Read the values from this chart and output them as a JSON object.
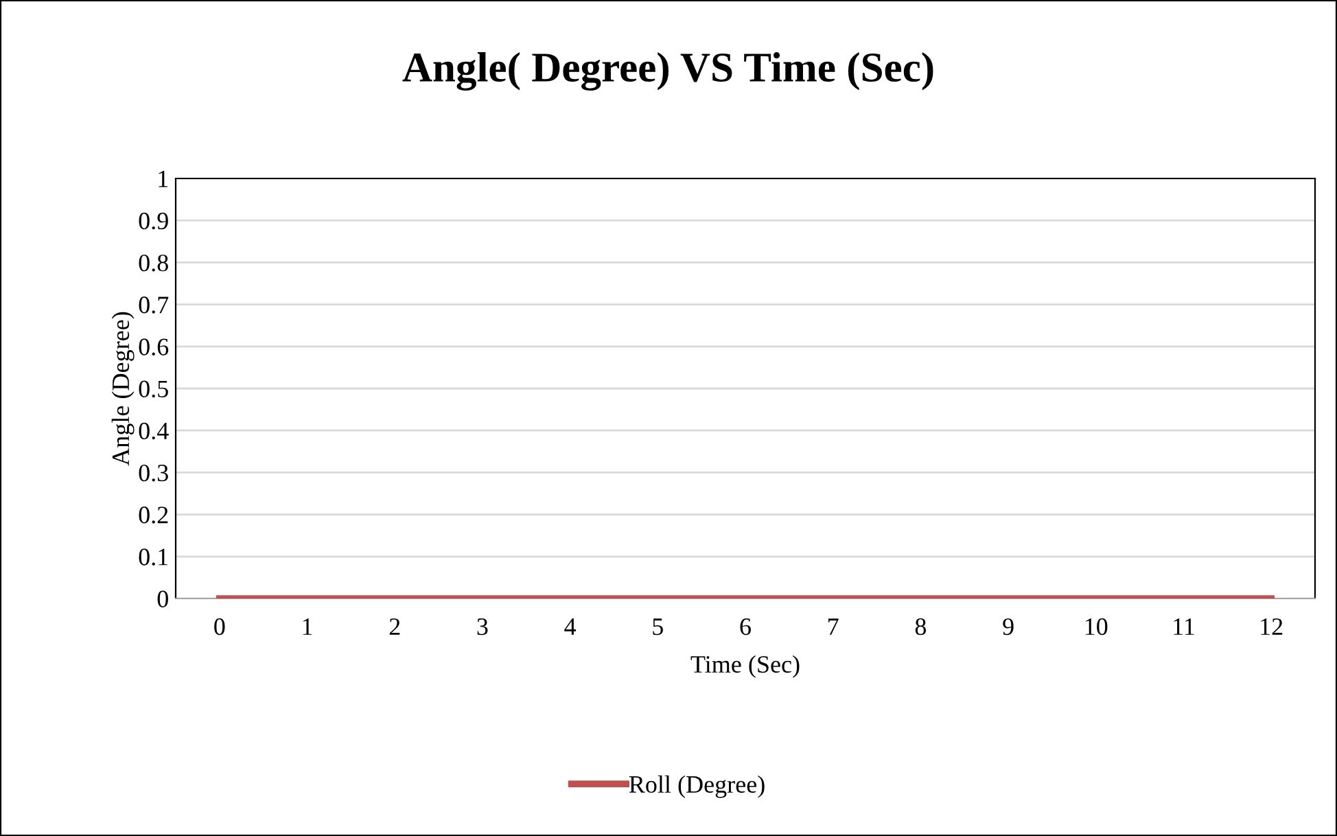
{
  "chart_data": {
    "type": "line",
    "title": "Angle( Degree) VS Time (Sec)",
    "xlabel": "Time (Sec)",
    "ylabel": "Angle (Degree)",
    "categories": [
      "0",
      "1",
      "2",
      "3",
      "4",
      "5",
      "6",
      "7",
      "8",
      "9",
      "10",
      "11",
      "12"
    ],
    "series": [
      {
        "name": "Roll (Degree)",
        "color": "#c0504d",
        "values": [
          0,
          0,
          0,
          0,
          0,
          0,
          0,
          0,
          0,
          0,
          0,
          0,
          0
        ]
      }
    ],
    "ylim": [
      0,
      1
    ],
    "yticks": [
      0,
      0.1,
      0.2,
      0.3,
      0.4,
      0.5,
      0.6,
      0.7,
      0.8,
      0.9,
      1
    ],
    "grid": "y",
    "legend": "bottom",
    "marker": "none",
    "line_style": "solid"
  }
}
